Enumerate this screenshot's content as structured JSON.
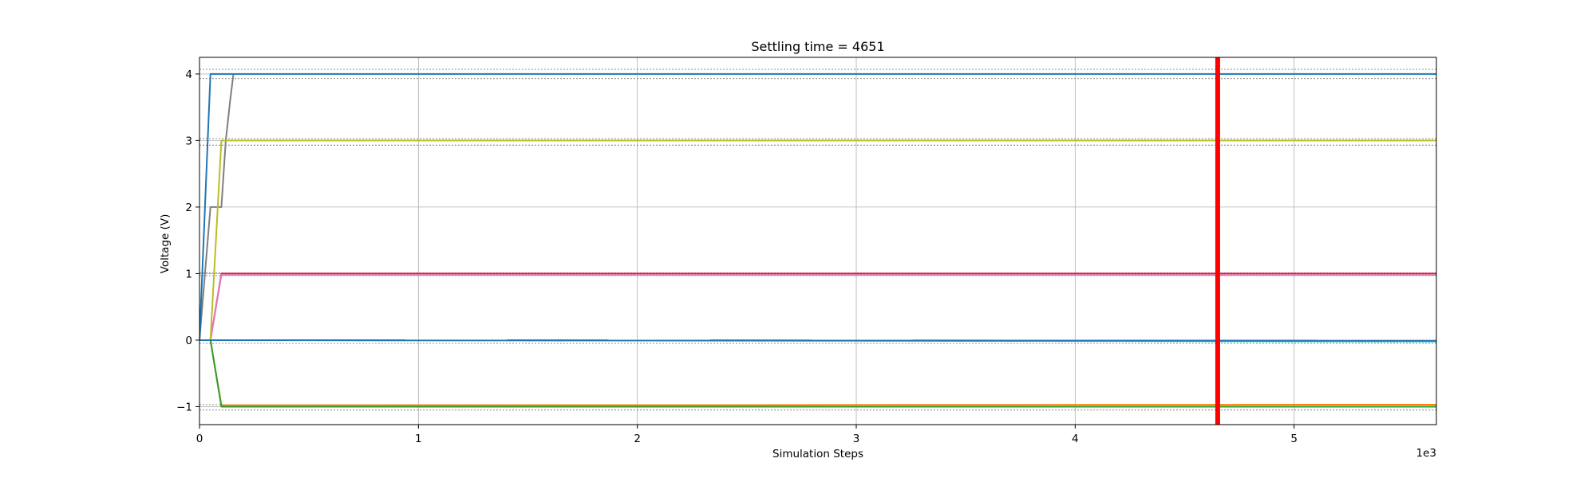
{
  "chart_data": {
    "type": "line",
    "title": "Settling time = 4651",
    "xlabel": "Simulation Steps",
    "ylabel": "Voltage (V)",
    "x_offset_text": "1e3",
    "xlim": [
      0,
      5650
    ],
    "ylim": [
      -1.27,
      4.25
    ],
    "x_ticks": [
      0,
      1000,
      2000,
      3000,
      4000,
      5000
    ],
    "x_tick_labels": [
      "0",
      "1",
      "2",
      "3",
      "4",
      "5"
    ],
    "y_ticks": [
      -1,
      0,
      1,
      2,
      3,
      4
    ],
    "y_tick_labels": [
      "−1",
      "0",
      "1",
      "2",
      "3",
      "4"
    ],
    "grid": true,
    "settling_time": 4651,
    "settling_color": "#ff0000",
    "tolerance_bands": [
      [
        3.93,
        4.07
      ],
      [
        2.93,
        3.03
      ],
      [
        0.97,
        1.01
      ],
      [
        -0.05,
        0.0
      ],
      [
        -1.05,
        -0.97
      ]
    ],
    "series": [
      {
        "color": "#ff7f0e",
        "x": [
          0,
          50,
          100,
          5650
        ],
        "y": [
          0,
          0,
          -0.98,
          -0.97
        ]
      },
      {
        "color": "#2ca02c",
        "x": [
          0,
          50,
          100,
          5650
        ],
        "y": [
          0,
          0,
          -1.0,
          -1.0
        ]
      },
      {
        "color": "#d62728",
        "x": [
          0,
          50,
          100,
          5650
        ],
        "y": [
          0,
          0,
          1.0,
          1.0
        ]
      },
      {
        "color": "#8c564b",
        "x": [
          0,
          5650
        ],
        "y": [
          0,
          -0.01
        ]
      },
      {
        "color": "#17becf",
        "x": [
          0,
          5650
        ],
        "y": [
          0,
          -0.02
        ]
      },
      {
        "color": "#e377c2",
        "x": [
          0,
          50,
          100,
          5650
        ],
        "y": [
          0,
          0,
          0.98,
          0.98
        ]
      },
      {
        "color": "#7f7f7f",
        "x": [
          0,
          50,
          100,
          120,
          140,
          155
        ],
        "y": [
          0,
          2.0,
          2.0,
          3.0,
          3.6,
          4.0
        ]
      },
      {
        "color": "#bcbd22",
        "x": [
          0,
          50,
          100,
          5650
        ],
        "y": [
          0,
          0,
          3.0,
          3.0
        ]
      },
      {
        "color": "#1f77b4",
        "x": [
          0,
          50,
          5650
        ],
        "y": [
          0,
          4.0,
          4.0
        ]
      },
      {
        "color": "#1f77b4",
        "x": [
          0,
          5650
        ],
        "y": [
          0,
          -0.01
        ]
      }
    ]
  }
}
